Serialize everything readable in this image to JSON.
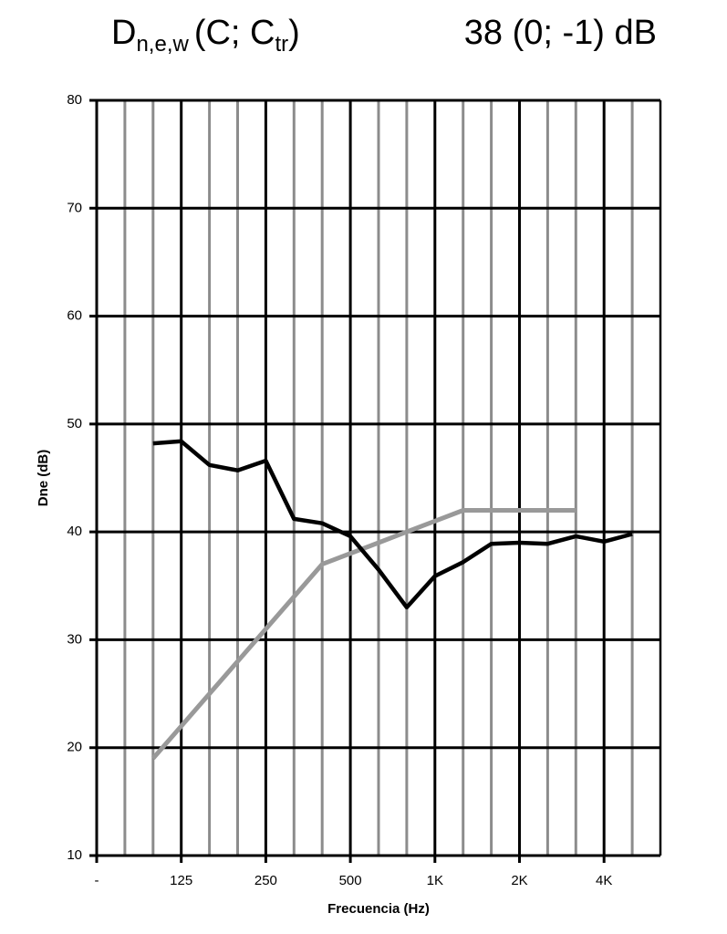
{
  "chart_data": {
    "type": "line",
    "title_parts": [
      "D",
      "n,e,w",
      "(C; C",
      "tr",
      ")"
    ],
    "rating": "38 (0; -1) dB",
    "x_label": "Frecuencia (Hz)",
    "y_label": "Dne (dB)",
    "categories": [
      "-",
      null,
      null,
      "125",
      null,
      null,
      "250",
      null,
      null,
      "500",
      null,
      null,
      "1K",
      null,
      null,
      "2K",
      null,
      null,
      "4K",
      null,
      null
    ],
    "series": [
      {
        "color": "#000000",
        "values": [
          null,
          null,
          48.2,
          48.4,
          46.2,
          45.7,
          46.6,
          41.2,
          40.8,
          39.6,
          36.5,
          33.0,
          35.9,
          37.2,
          38.9,
          39.0,
          38.9,
          39.6,
          39.1,
          39.8,
          null
        ]
      },
      {
        "color": "#999999",
        "values": [
          null,
          null,
          19,
          22,
          25,
          28,
          31,
          34,
          37,
          38,
          39,
          40,
          41,
          42,
          42,
          42,
          42,
          42,
          null,
          null,
          null
        ]
      }
    ],
    "ylim": [
      10,
      80
    ],
    "yticks": [
      10,
      20,
      30,
      40,
      50,
      60,
      70,
      80
    ],
    "grid": true
  }
}
